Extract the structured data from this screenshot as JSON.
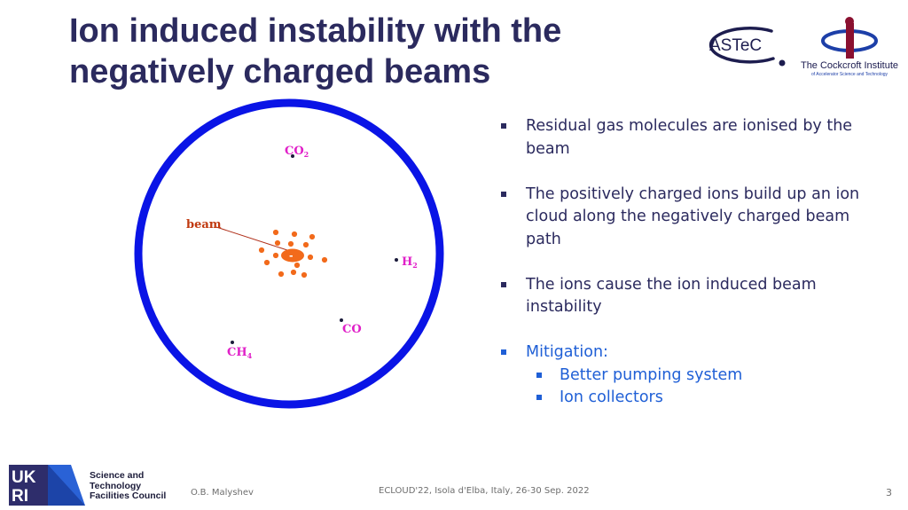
{
  "slide": {
    "title_line1": "Ion induced instability with the",
    "title_line2": "negatively charged beams"
  },
  "logos": {
    "astec": "ASTeC",
    "cockcroft_name": "The Cockcroft Institute",
    "cockcroft_sub": "of Accelerator Science and Technology"
  },
  "diagram": {
    "beam_label": "beam",
    "beam_sign": "-",
    "ion_sign": "+",
    "molecules": {
      "co2": {
        "main": "CO",
        "sub": "2"
      },
      "h2": {
        "main": "H",
        "sub": "2"
      },
      "co": {
        "main": "CO",
        "sub": ""
      },
      "ch4": {
        "main": "CH",
        "sub": "4"
      }
    },
    "colors": {
      "chamber": "#0a14e6",
      "beam": "#f26a1b",
      "ions": "#e8331c",
      "molecule_labels": "#e020c8",
      "beam_label": "#c0390f"
    }
  },
  "bullets": {
    "item1": "Residual gas molecules are ionised by the beam",
    "item2": "The positively charged ions build up an ion cloud along the negatively charged beam path",
    "item3": "The ions cause the ion induced beam instability",
    "item4": "Mitigation:",
    "sub1": "Better pumping system",
    "sub2": "Ion collectors"
  },
  "footer": {
    "ukri_line1": "UK",
    "ukri_line2": "RI",
    "stfc_line1": "Science and",
    "stfc_line2": "Technology",
    "stfc_line3": "Facilities Council",
    "author": "O.B. Malyshev",
    "conference": "ECLOUD'22, Isola d'Elba, Italy, 26-30 Sep. 2022",
    "page": "3"
  }
}
